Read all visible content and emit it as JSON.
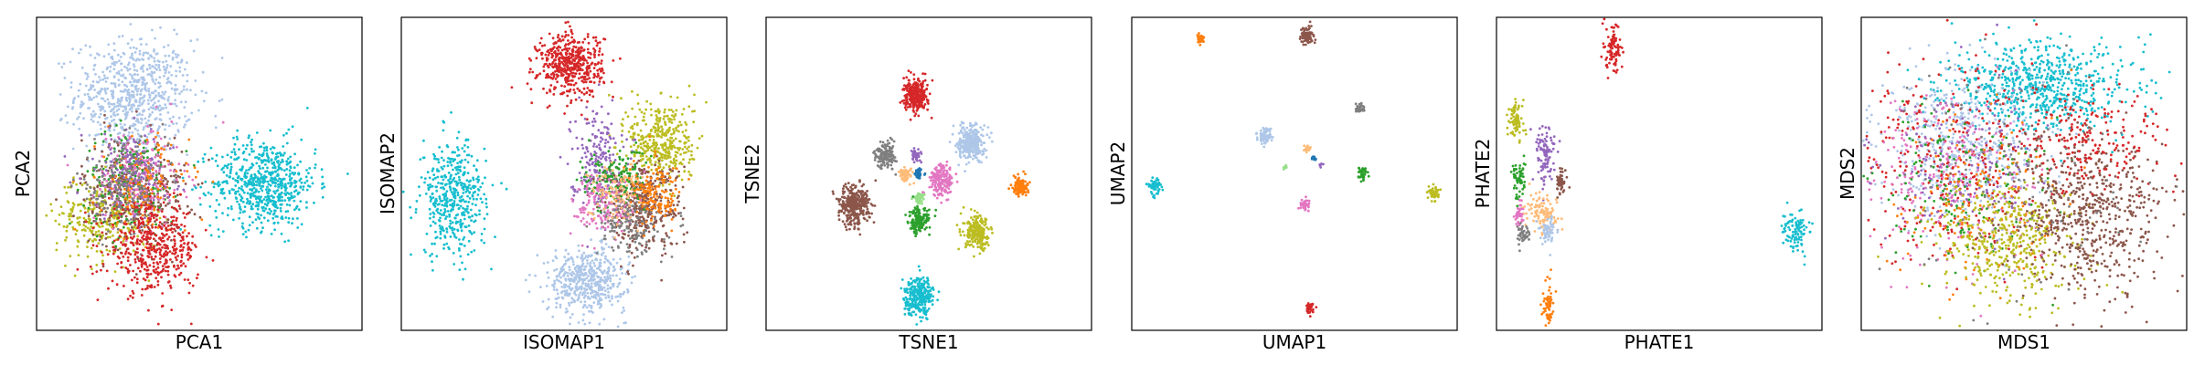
{
  "figure": {
    "palette": [
      "#d62728",
      "#aec7e8",
      "#17becf",
      "#8c564b",
      "#2ca02c",
      "#1f77b4",
      "#ff7f0e",
      "#9467bd",
      "#e377c2",
      "#bcbd22",
      "#7f7f7f",
      "#ffbb78",
      "#98df8a",
      "#ff9896",
      "#c5b0d5",
      "#c49c94",
      "#f7b6d2"
    ]
  },
  "chart_data": [
    {
      "type": "scatter",
      "title": "",
      "xlabel": "PCA1",
      "ylabel": "PCA2",
      "grid": false,
      "ticks": false,
      "clusters": [
        {
          "color": "#aec7e8",
          "x": 0.3,
          "y": 0.75,
          "sx": 0.09,
          "sy": 0.09,
          "n": 700
        },
        {
          "color": "#17becf",
          "x": 0.7,
          "y": 0.47,
          "sx": 0.08,
          "sy": 0.07,
          "n": 650
        },
        {
          "color": "#bcbd22",
          "x": 0.2,
          "y": 0.36,
          "sx": 0.07,
          "sy": 0.07,
          "n": 300
        },
        {
          "color": "#8c564b",
          "x": 0.3,
          "y": 0.44,
          "sx": 0.08,
          "sy": 0.09,
          "n": 350
        },
        {
          "color": "#2ca02c",
          "x": 0.29,
          "y": 0.48,
          "sx": 0.07,
          "sy": 0.08,
          "n": 200
        },
        {
          "color": "#e377c2",
          "x": 0.32,
          "y": 0.49,
          "sx": 0.07,
          "sy": 0.08,
          "n": 200
        },
        {
          "color": "#ff7f0e",
          "x": 0.33,
          "y": 0.46,
          "sx": 0.07,
          "sy": 0.08,
          "n": 150
        },
        {
          "color": "#9467bd",
          "x": 0.28,
          "y": 0.5,
          "sx": 0.07,
          "sy": 0.07,
          "n": 150
        },
        {
          "color": "#7f7f7f",
          "x": 0.26,
          "y": 0.46,
          "sx": 0.07,
          "sy": 0.07,
          "n": 150
        },
        {
          "color": "#d62728",
          "x": 0.36,
          "y": 0.26,
          "sx": 0.07,
          "sy": 0.07,
          "n": 450
        }
      ]
    },
    {
      "type": "scatter",
      "title": "",
      "xlabel": "ISOMAP1",
      "ylabel": "ISOMAP2",
      "grid": false,
      "ticks": false,
      "clusters": [
        {
          "color": "#d62728",
          "x": 0.52,
          "y": 0.85,
          "sx": 0.05,
          "sy": 0.05,
          "n": 500
        },
        {
          "color": "#17becf",
          "x": 0.16,
          "y": 0.42,
          "sx": 0.05,
          "sy": 0.09,
          "n": 450
        },
        {
          "color": "#aec7e8",
          "x": 0.57,
          "y": 0.16,
          "sx": 0.06,
          "sy": 0.05,
          "n": 500
        },
        {
          "color": "#bcbd22",
          "x": 0.8,
          "y": 0.6,
          "sx": 0.05,
          "sy": 0.07,
          "n": 400
        },
        {
          "color": "#9467bd",
          "x": 0.6,
          "y": 0.55,
          "sx": 0.04,
          "sy": 0.08,
          "n": 200
        },
        {
          "color": "#8c564b",
          "x": 0.74,
          "y": 0.4,
          "sx": 0.06,
          "sy": 0.07,
          "n": 400
        },
        {
          "color": "#2ca02c",
          "x": 0.65,
          "y": 0.48,
          "sx": 0.05,
          "sy": 0.05,
          "n": 150
        },
        {
          "color": "#e377c2",
          "x": 0.63,
          "y": 0.4,
          "sx": 0.05,
          "sy": 0.05,
          "n": 150
        },
        {
          "color": "#ff7f0e",
          "x": 0.78,
          "y": 0.43,
          "sx": 0.04,
          "sy": 0.05,
          "n": 150
        },
        {
          "color": "#7f7f7f",
          "x": 0.7,
          "y": 0.34,
          "sx": 0.05,
          "sy": 0.05,
          "n": 150
        },
        {
          "color": "#ffbb78",
          "x": 0.66,
          "y": 0.44,
          "sx": 0.04,
          "sy": 0.05,
          "n": 100
        }
      ]
    },
    {
      "type": "scatter",
      "title": "",
      "xlabel": "TSNE1",
      "ylabel": "TSNE2",
      "grid": false,
      "ticks": false,
      "clusters": [
        {
          "color": "#d62728",
          "x": 0.46,
          "y": 0.75,
          "sx": 0.018,
          "sy": 0.025,
          "n": 300
        },
        {
          "color": "#aec7e8",
          "x": 0.63,
          "y": 0.6,
          "sx": 0.02,
          "sy": 0.028,
          "n": 300
        },
        {
          "color": "#ff7f0e",
          "x": 0.78,
          "y": 0.46,
          "sx": 0.012,
          "sy": 0.015,
          "n": 120
        },
        {
          "color": "#7f7f7f",
          "x": 0.37,
          "y": 0.56,
          "sx": 0.015,
          "sy": 0.02,
          "n": 150
        },
        {
          "color": "#9467bd",
          "x": 0.46,
          "y": 0.56,
          "sx": 0.008,
          "sy": 0.01,
          "n": 60
        },
        {
          "color": "#ffbb78",
          "x": 0.43,
          "y": 0.5,
          "sx": 0.01,
          "sy": 0.012,
          "n": 60
        },
        {
          "color": "#e377c2",
          "x": 0.54,
          "y": 0.48,
          "sx": 0.018,
          "sy": 0.025,
          "n": 200
        },
        {
          "color": "#1f77b4",
          "x": 0.47,
          "y": 0.5,
          "sx": 0.006,
          "sy": 0.008,
          "n": 40
        },
        {
          "color": "#98df8a",
          "x": 0.47,
          "y": 0.42,
          "sx": 0.008,
          "sy": 0.01,
          "n": 50
        },
        {
          "color": "#8c564b",
          "x": 0.27,
          "y": 0.4,
          "sx": 0.024,
          "sy": 0.032,
          "n": 350
        },
        {
          "color": "#2ca02c",
          "x": 0.47,
          "y": 0.35,
          "sx": 0.016,
          "sy": 0.02,
          "n": 150
        },
        {
          "color": "#bcbd22",
          "x": 0.65,
          "y": 0.31,
          "sx": 0.02,
          "sy": 0.026,
          "n": 250
        },
        {
          "color": "#17becf",
          "x": 0.47,
          "y": 0.11,
          "sx": 0.022,
          "sy": 0.03,
          "n": 300
        }
      ]
    },
    {
      "type": "scatter",
      "title": "",
      "xlabel": "UMAP1",
      "ylabel": "UMAP2",
      "grid": false,
      "ticks": false,
      "clusters": [
        {
          "color": "#ff7f0e",
          "x": 0.21,
          "y": 0.93,
          "sx": 0.006,
          "sy": 0.008,
          "n": 30
        },
        {
          "color": "#8c564b",
          "x": 0.54,
          "y": 0.94,
          "sx": 0.01,
          "sy": 0.014,
          "n": 80
        },
        {
          "color": "#7f7f7f",
          "x": 0.7,
          "y": 0.71,
          "sx": 0.007,
          "sy": 0.009,
          "n": 40
        },
        {
          "color": "#aec7e8",
          "x": 0.41,
          "y": 0.62,
          "sx": 0.012,
          "sy": 0.012,
          "n": 80
        },
        {
          "color": "#ffbb78",
          "x": 0.54,
          "y": 0.58,
          "sx": 0.006,
          "sy": 0.006,
          "n": 20
        },
        {
          "color": "#1f77b4",
          "x": 0.56,
          "y": 0.55,
          "sx": 0.003,
          "sy": 0.004,
          "n": 10
        },
        {
          "color": "#9467bd",
          "x": 0.58,
          "y": 0.53,
          "sx": 0.003,
          "sy": 0.004,
          "n": 8
        },
        {
          "color": "#98df8a",
          "x": 0.47,
          "y": 0.52,
          "sx": 0.003,
          "sy": 0.004,
          "n": 8
        },
        {
          "color": "#2ca02c",
          "x": 0.71,
          "y": 0.5,
          "sx": 0.008,
          "sy": 0.01,
          "n": 40
        },
        {
          "color": "#17becf",
          "x": 0.07,
          "y": 0.46,
          "sx": 0.01,
          "sy": 0.012,
          "n": 60
        },
        {
          "color": "#bcbd22",
          "x": 0.93,
          "y": 0.44,
          "sx": 0.008,
          "sy": 0.012,
          "n": 50
        },
        {
          "color": "#e377c2",
          "x": 0.53,
          "y": 0.4,
          "sx": 0.008,
          "sy": 0.01,
          "n": 40
        },
        {
          "color": "#d62728",
          "x": 0.55,
          "y": 0.07,
          "sx": 0.008,
          "sy": 0.01,
          "n": 40
        }
      ]
    },
    {
      "type": "scatter",
      "title": "",
      "xlabel": "PHATE1",
      "ylabel": "PHATE2",
      "grid": false,
      "ticks": false,
      "clusters": [
        {
          "color": "#d62728",
          "x": 0.36,
          "y": 0.9,
          "sx": 0.012,
          "sy": 0.04,
          "n": 100
        },
        {
          "color": "#bcbd22",
          "x": 0.06,
          "y": 0.67,
          "sx": 0.012,
          "sy": 0.03,
          "n": 80
        },
        {
          "color": "#9467bd",
          "x": 0.15,
          "y": 0.57,
          "sx": 0.015,
          "sy": 0.05,
          "n": 100
        },
        {
          "color": "#2ca02c",
          "x": 0.07,
          "y": 0.48,
          "sx": 0.01,
          "sy": 0.03,
          "n": 60
        },
        {
          "color": "#8c564b",
          "x": 0.2,
          "y": 0.47,
          "sx": 0.008,
          "sy": 0.02,
          "n": 50
        },
        {
          "color": "#ffbb78",
          "x": 0.14,
          "y": 0.38,
          "sx": 0.025,
          "sy": 0.03,
          "n": 100
        },
        {
          "color": "#e377c2",
          "x": 0.07,
          "y": 0.37,
          "sx": 0.008,
          "sy": 0.02,
          "n": 40
        },
        {
          "color": "#7f7f7f",
          "x": 0.08,
          "y": 0.31,
          "sx": 0.008,
          "sy": 0.015,
          "n": 40
        },
        {
          "color": "#aec7e8",
          "x": 0.16,
          "y": 0.32,
          "sx": 0.012,
          "sy": 0.02,
          "n": 60
        },
        {
          "color": "#ff7f0e",
          "x": 0.16,
          "y": 0.08,
          "sx": 0.008,
          "sy": 0.04,
          "n": 60
        },
        {
          "color": "#17becf",
          "x": 0.92,
          "y": 0.32,
          "sx": 0.02,
          "sy": 0.03,
          "n": 100
        }
      ]
    },
    {
      "type": "scatter",
      "title": "",
      "xlabel": "MDS1",
      "ylabel": "MDS2",
      "grid": false,
      "ticks": false,
      "clusters": [
        {
          "color": "#17becf",
          "x": 0.55,
          "y": 0.78,
          "sx": 0.14,
          "sy": 0.07,
          "n": 700
        },
        {
          "color": "#aec7e8",
          "x": 0.3,
          "y": 0.58,
          "sx": 0.12,
          "sy": 0.12,
          "n": 500
        },
        {
          "color": "#d62728",
          "x": 0.28,
          "y": 0.55,
          "sx": 0.16,
          "sy": 0.16,
          "n": 350
        },
        {
          "color": "#e377c2",
          "x": 0.26,
          "y": 0.48,
          "sx": 0.14,
          "sy": 0.14,
          "n": 250
        },
        {
          "color": "#9467bd",
          "x": 0.32,
          "y": 0.52,
          "sx": 0.14,
          "sy": 0.14,
          "n": 150
        },
        {
          "color": "#2ca02c",
          "x": 0.3,
          "y": 0.45,
          "sx": 0.14,
          "sy": 0.14,
          "n": 150
        },
        {
          "color": "#ff7f0e",
          "x": 0.35,
          "y": 0.4,
          "sx": 0.14,
          "sy": 0.14,
          "n": 150
        },
        {
          "color": "#bcbd22",
          "x": 0.46,
          "y": 0.27,
          "sx": 0.11,
          "sy": 0.1,
          "n": 450
        },
        {
          "color": "#8c564b",
          "x": 0.7,
          "y": 0.37,
          "sx": 0.12,
          "sy": 0.13,
          "n": 600
        },
        {
          "color": "#d62728",
          "x": 0.72,
          "y": 0.6,
          "sx": 0.11,
          "sy": 0.08,
          "n": 200
        },
        {
          "color": "#7f7f7f",
          "x": 0.5,
          "y": 0.5,
          "sx": 0.2,
          "sy": 0.2,
          "n": 120
        }
      ]
    }
  ]
}
